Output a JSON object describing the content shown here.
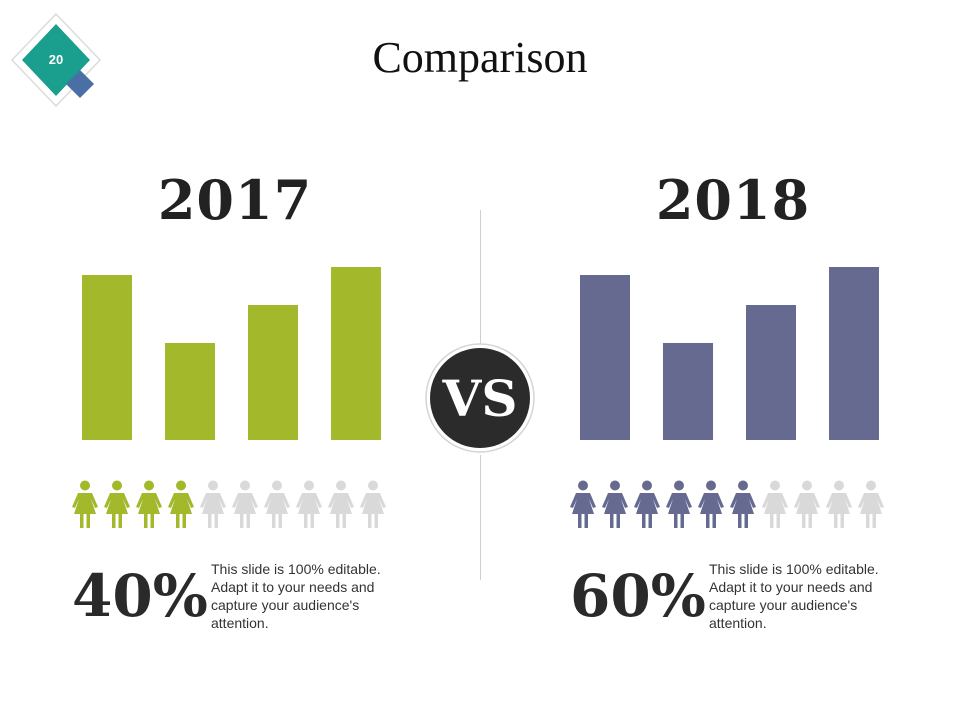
{
  "slide": {
    "number": "20",
    "title": "Comparison",
    "vs_label": "VS"
  },
  "colors": {
    "teal": "#1a9e8e",
    "blue_accent": "#4a6fa5",
    "green": "#a3b82b",
    "purple": "#666a91",
    "inactive_person": "#d9d9d9",
    "vs_circle": "#2b2b2b"
  },
  "panels": [
    {
      "year": "2017",
      "color": "#a3b82b",
      "bar_values": [
        0.87,
        0.51,
        0.71,
        0.91
      ],
      "people_total": 10,
      "people_filled": 4,
      "percent": "40%",
      "description": "This slide is 100% editable. Adapt it to your needs and capture your audience's attention."
    },
    {
      "year": "2018",
      "color": "#666a91",
      "bar_values": [
        0.87,
        0.51,
        0.71,
        0.91
      ],
      "people_total": 10,
      "people_filled": 6,
      "percent": "60%",
      "description": "This slide is 100% editable. Adapt it to your needs and capture your audience's attention."
    }
  ]
}
